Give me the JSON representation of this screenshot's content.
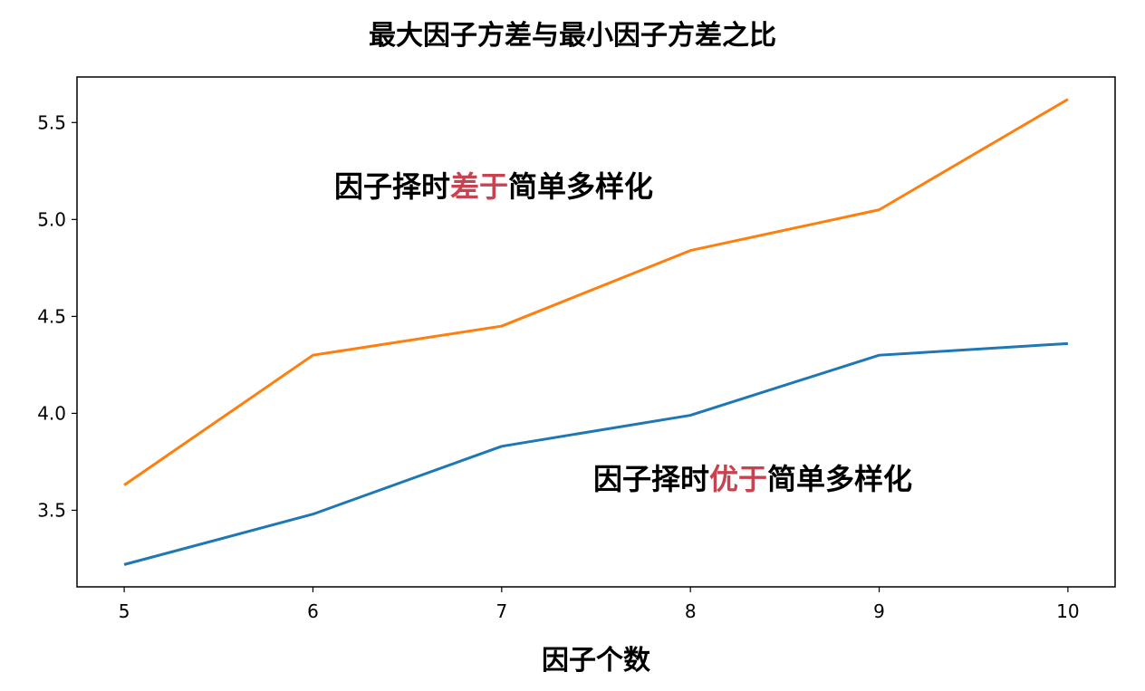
{
  "chart_data": {
    "type": "line",
    "title": "最大因子方差与最小因子方差之比",
    "xlabel": "因子个数",
    "ylabel": "",
    "x": [
      5,
      6,
      7,
      8,
      9,
      10
    ],
    "xticks": [
      "5",
      "6",
      "7",
      "8",
      "9",
      "10"
    ],
    "yticks": [
      "3.5",
      "4.0",
      "4.5",
      "5.0",
      "5.5"
    ],
    "xlim": [
      4.75,
      10.25
    ],
    "ylim": [
      3.105,
      5.735
    ],
    "grid": false,
    "series": [
      {
        "color": "#1f77b4",
        "values": [
          3.22,
          3.48,
          3.83,
          3.99,
          4.3,
          4.36
        ]
      },
      {
        "color": "#ff7f0e",
        "values": [
          3.63,
          4.3,
          4.45,
          4.84,
          5.05,
          5.62
        ]
      }
    ],
    "annotations": [
      {
        "id": "upper",
        "pre": "因子择时",
        "highlight": "差于",
        "post": "简单多样化",
        "highlight_color": "#c8424f"
      },
      {
        "id": "lower",
        "pre": "因子择时",
        "highlight": "优于",
        "post": "简单多样化",
        "highlight_color": "#c8424f"
      }
    ]
  }
}
